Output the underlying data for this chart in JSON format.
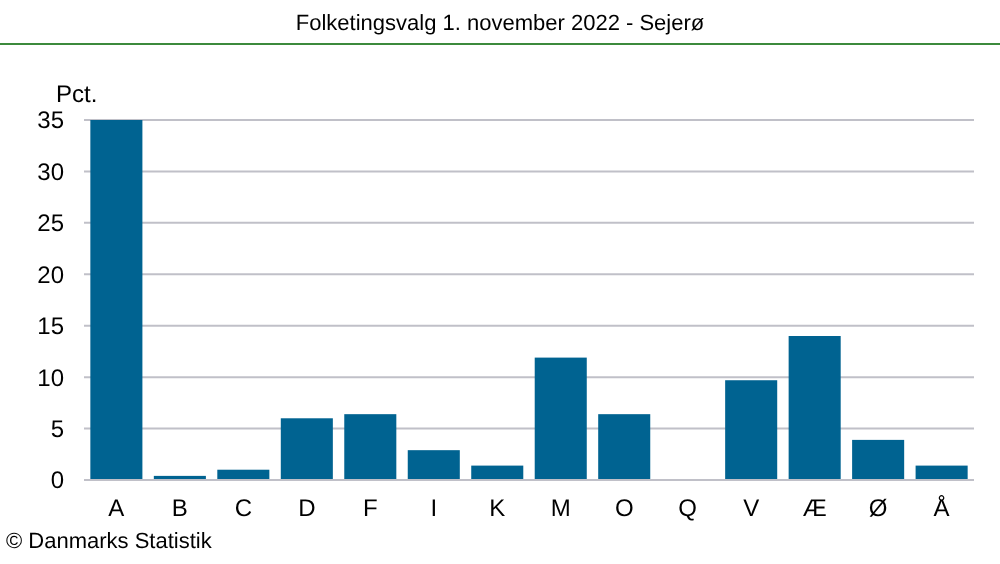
{
  "chart_data": {
    "type": "bar",
    "title": "Folketingsvalg 1. november 2022 - Sejerø",
    "ylabel": "Pct.",
    "categories": [
      "A",
      "B",
      "C",
      "D",
      "F",
      "I",
      "K",
      "M",
      "O",
      "Q",
      "V",
      "Æ",
      "Ø",
      "Å"
    ],
    "values": [
      35.0,
      0.4,
      1.0,
      6.0,
      6.4,
      2.9,
      1.4,
      11.9,
      6.4,
      0,
      9.7,
      14.0,
      3.9,
      1.4
    ],
    "color": "#006391",
    "ylim": [
      0,
      35
    ],
    "yticks": [
      0,
      5,
      10,
      15,
      20,
      25,
      30,
      35
    ],
    "grid": "y",
    "annotations": [
      "© Danmarks Statistik"
    ]
  }
}
